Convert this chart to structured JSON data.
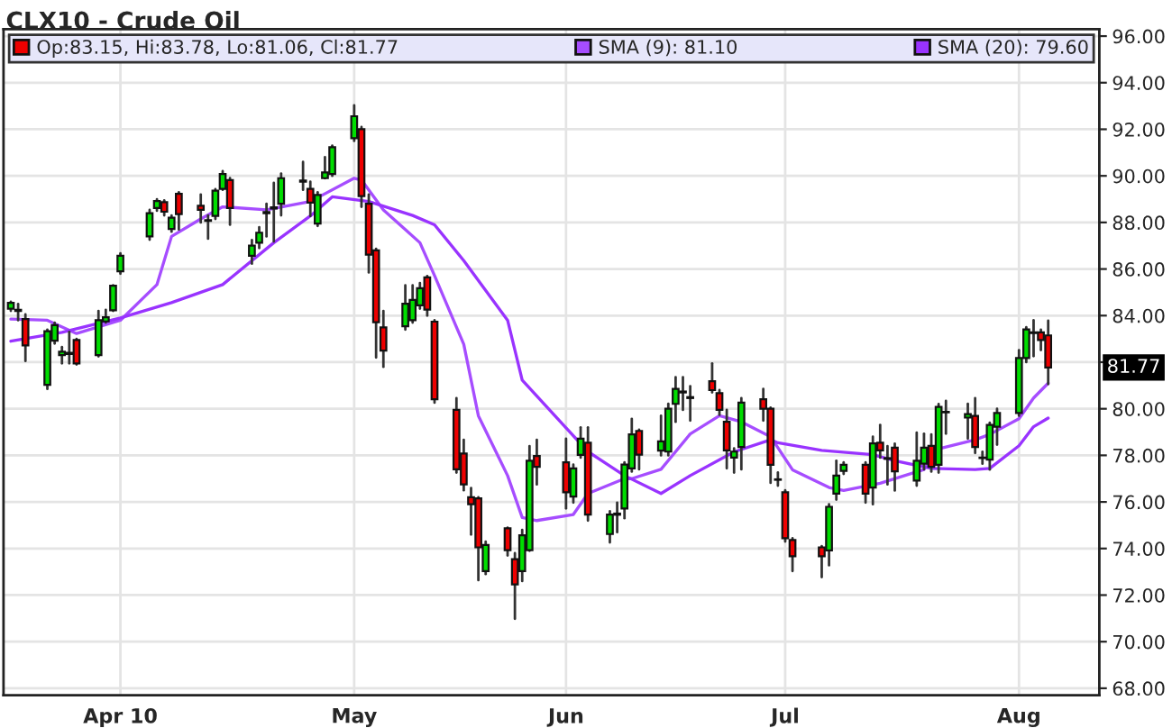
{
  "chart_data": {
    "type": "candlestick",
    "title": "CLX10 - Crude Oil",
    "x": [
      "2010-03-17",
      "2010-03-18",
      "2010-03-19",
      "2010-03-22",
      "2010-03-23",
      "2010-03-24",
      "2010-03-25",
      "2010-03-26",
      "2010-03-29",
      "2010-03-30",
      "2010-03-31",
      "2010-04-01",
      "2010-04-05",
      "2010-04-06",
      "2010-04-07",
      "2010-04-08",
      "2010-04-09",
      "2010-04-12",
      "2010-04-13",
      "2010-04-14",
      "2010-04-15",
      "2010-04-16",
      "2010-04-19",
      "2010-04-20",
      "2010-04-21",
      "2010-04-22",
      "2010-04-23",
      "2010-04-26",
      "2010-04-27",
      "2010-04-28",
      "2010-04-29",
      "2010-04-30",
      "2010-05-03",
      "2010-05-04",
      "2010-05-05",
      "2010-05-06",
      "2010-05-07",
      "2010-05-10",
      "2010-05-11",
      "2010-05-12",
      "2010-05-13",
      "2010-05-14",
      "2010-05-17",
      "2010-05-18",
      "2010-05-19",
      "2010-05-20",
      "2010-05-21",
      "2010-05-24",
      "2010-05-25",
      "2010-05-26",
      "2010-05-27",
      "2010-05-28",
      "2010-06-01",
      "2010-06-02",
      "2010-06-03",
      "2010-06-04",
      "2010-06-07",
      "2010-06-08",
      "2010-06-09",
      "2010-06-10",
      "2010-06-11",
      "2010-06-14",
      "2010-06-15",
      "2010-06-16",
      "2010-06-17",
      "2010-06-18",
      "2010-06-21",
      "2010-06-22",
      "2010-06-23",
      "2010-06-24",
      "2010-06-25",
      "2010-06-28",
      "2010-06-29",
      "2010-06-30",
      "2010-07-01",
      "2010-07-02",
      "2010-07-06",
      "2010-07-07",
      "2010-07-08",
      "2010-07-09",
      "2010-07-12",
      "2010-07-13",
      "2010-07-14",
      "2010-07-15",
      "2010-07-16",
      "2010-07-19",
      "2010-07-20",
      "2010-07-21",
      "2010-07-22",
      "2010-07-23",
      "2010-07-26",
      "2010-07-27",
      "2010-07-28",
      "2010-07-29",
      "2010-07-30",
      "2010-08-02",
      "2010-08-03",
      "2010-08-04",
      "2010-08-05",
      "2010-08-06"
    ],
    "series": [
      {
        "name": "Op:83.15, Hi:83.78, Lo:81.06, Cl:81.77",
        "color": "#ee0000",
        "ohlc": [
          [
            84.3,
            84.6,
            84.2,
            84.55
          ],
          [
            84.2,
            84.5,
            83.8,
            84.25
          ],
          [
            83.85,
            84.05,
            82.05,
            82.72
          ],
          [
            81.03,
            83.4,
            80.85,
            83.33
          ],
          [
            82.92,
            83.7,
            82.8,
            83.59
          ],
          [
            82.3,
            82.65,
            81.95,
            82.45
          ],
          [
            82.35,
            83.3,
            81.95,
            82.4
          ],
          [
            82.95,
            83.0,
            81.9,
            81.95
          ],
          [
            82.3,
            84.2,
            82.25,
            83.8
          ],
          [
            83.75,
            84.25,
            83.7,
            83.93
          ],
          [
            84.23,
            85.3,
            84.2,
            85.28
          ],
          [
            85.9,
            86.67,
            85.8,
            86.57
          ],
          [
            87.4,
            88.54,
            87.26,
            88.4
          ],
          [
            88.62,
            89.0,
            88.5,
            88.92
          ],
          [
            88.87,
            88.95,
            88.3,
            88.46
          ],
          [
            87.72,
            88.3,
            87.6,
            88.2
          ],
          [
            89.23,
            89.3,
            87.7,
            88.36
          ],
          [
            88.72,
            89.2,
            88.0,
            88.54
          ],
          [
            88.07,
            88.3,
            87.3,
            88.1
          ],
          [
            88.28,
            89.43,
            88.15,
            89.36
          ],
          [
            89.44,
            90.2,
            89.4,
            90.08
          ],
          [
            89.82,
            89.9,
            87.9,
            88.62
          ],
          [
            86.57,
            87.25,
            86.23,
            87.0
          ],
          [
            87.13,
            87.8,
            86.9,
            87.56
          ],
          [
            88.4,
            88.8,
            87.4,
            88.45
          ],
          [
            88.6,
            89.7,
            87.18,
            88.65
          ],
          [
            88.8,
            90.1,
            88.3,
            89.9
          ],
          [
            89.75,
            90.6,
            89.4,
            89.8
          ],
          [
            89.44,
            89.75,
            88.28,
            88.85
          ],
          [
            87.95,
            89.3,
            87.85,
            89.18
          ],
          [
            89.9,
            90.8,
            89.9,
            90.15
          ],
          [
            90.08,
            91.3,
            90.0,
            91.23
          ],
          [
            91.62,
            93.03,
            91.5,
            92.56
          ],
          [
            92.0,
            92.1,
            88.67,
            89.13
          ],
          [
            88.8,
            89.2,
            85.85,
            86.62
          ],
          [
            86.8,
            86.87,
            82.2,
            83.72
          ],
          [
            83.49,
            84.2,
            81.8,
            82.5
          ],
          [
            83.54,
            85.3,
            83.4,
            84.51
          ],
          [
            83.8,
            85.3,
            83.7,
            84.67
          ],
          [
            84.44,
            85.4,
            84.3,
            85.18
          ],
          [
            85.64,
            85.7,
            84.0,
            84.26
          ],
          [
            83.74,
            83.8,
            80.26,
            80.41
          ],
          [
            79.95,
            80.46,
            77.26,
            77.4
          ],
          [
            78.08,
            78.67,
            76.5,
            76.75
          ],
          [
            76.2,
            76.6,
            74.6,
            75.9
          ],
          [
            76.15,
            76.2,
            72.64,
            74.05
          ],
          [
            73.03,
            74.3,
            72.9,
            74.15
          ],
          [
            74.87,
            74.9,
            73.7,
            73.93
          ],
          [
            73.54,
            73.8,
            70.98,
            72.46
          ],
          [
            73.03,
            74.8,
            72.6,
            74.57
          ],
          [
            73.93,
            78.4,
            73.9,
            77.77
          ],
          [
            77.97,
            78.67,
            76.75,
            77.51
          ],
          [
            77.7,
            78.72,
            75.72,
            76.41
          ],
          [
            76.23,
            77.6,
            75.97,
            77.44
          ],
          [
            78.02,
            79.2,
            77.9,
            78.72
          ],
          [
            78.54,
            79.2,
            75.2,
            75.46
          ],
          [
            74.62,
            75.6,
            74.26,
            75.46
          ],
          [
            75.45,
            75.97,
            74.7,
            75.5
          ],
          [
            75.72,
            77.7,
            75.3,
            77.6
          ],
          [
            77.44,
            79.57,
            77.3,
            78.9
          ],
          [
            79.05,
            79.1,
            77.4,
            78.03
          ],
          [
            78.2,
            79.7,
            78.0,
            78.6
          ],
          [
            78.16,
            80.21,
            78.0,
            80.0
          ],
          [
            80.21,
            81.36,
            79.44,
            80.85
          ],
          [
            80.7,
            81.36,
            79.95,
            80.74
          ],
          [
            80.5,
            80.97,
            79.49,
            80.46
          ],
          [
            81.18,
            81.95,
            80.7,
            80.8
          ],
          [
            80.67,
            80.8,
            79.74,
            79.95
          ],
          [
            79.44,
            79.95,
            77.44,
            78.21
          ],
          [
            77.9,
            78.3,
            77.26,
            78.16
          ],
          [
            78.36,
            80.46,
            77.4,
            80.26
          ],
          [
            80.41,
            80.85,
            79.49,
            80.0
          ],
          [
            80.0,
            80.05,
            76.82,
            77.59
          ],
          [
            76.97,
            77.26,
            76.7,
            76.95
          ],
          [
            76.41,
            76.5,
            74.3,
            74.44
          ],
          [
            74.36,
            74.44,
            73.03,
            73.67
          ],
          [
            74.05,
            74.1,
            72.77,
            73.67
          ],
          [
            73.92,
            75.9,
            73.28,
            75.79
          ],
          [
            76.36,
            77.77,
            76.1,
            77.13
          ],
          [
            77.33,
            77.7,
            77.2,
            77.59
          ],
          [
            77.59,
            77.7,
            75.97,
            76.36
          ],
          [
            76.62,
            78.8,
            75.9,
            78.51
          ],
          [
            78.54,
            79.31,
            77.9,
            78.21
          ],
          [
            77.85,
            78.4,
            76.75,
            77.88
          ],
          [
            78.33,
            78.5,
            76.49,
            77.31
          ],
          [
            76.92,
            78.98,
            76.7,
            77.77
          ],
          [
            77.64,
            78.93,
            77.4,
            78.33
          ],
          [
            78.41,
            78.9,
            77.3,
            77.51
          ],
          [
            77.59,
            80.2,
            77.26,
            80.08
          ],
          [
            79.85,
            80.34,
            78.93,
            79.87
          ],
          [
            79.62,
            80.21,
            78.72,
            79.77
          ],
          [
            79.69,
            80.46,
            78.1,
            78.36
          ],
          [
            77.88,
            78.15,
            77.64,
            77.9
          ],
          [
            77.82,
            79.4,
            77.39,
            79.31
          ],
          [
            79.23,
            80.0,
            78.46,
            79.82
          ],
          [
            79.82,
            82.52,
            79.7,
            82.18
          ],
          [
            82.18,
            83.5,
            82.0,
            83.41
          ],
          [
            83.25,
            83.8,
            82.26,
            83.28
          ],
          [
            83.28,
            83.4,
            82.52,
            82.95
          ],
          [
            83.15,
            83.78,
            81.06,
            81.77
          ]
        ],
        "colors": [
          "#00dd00",
          "#00dd00",
          "#ee0000",
          "#00dd00",
          "#00dd00",
          "#00dd00",
          "#00dd00",
          "#ee0000",
          "#00dd00",
          "#00dd00",
          "#00dd00",
          "#00dd00",
          "#00dd00",
          "#00dd00",
          "#ee0000",
          "#00dd00",
          "#ee0000",
          "#ee0000",
          "#00dd00",
          "#00dd00",
          "#00dd00",
          "#ee0000",
          "#00dd00",
          "#00dd00",
          "#00dd00",
          "#00dd00",
          "#00dd00",
          "#00dd00",
          "#ee0000",
          "#00dd00",
          "#00dd00",
          "#00dd00",
          "#00dd00",
          "#ee0000",
          "#ee0000",
          "#ee0000",
          "#ee0000",
          "#00dd00",
          "#00dd00",
          "#00dd00",
          "#ee0000",
          "#ee0000",
          "#ee0000",
          "#ee0000",
          "#ee0000",
          "#ee0000",
          "#00dd00",
          "#ee0000",
          "#ee0000",
          "#00dd00",
          "#00dd00",
          "#ee0000",
          "#ee0000",
          "#00dd00",
          "#00dd00",
          "#ee0000",
          "#00dd00",
          "#00dd00",
          "#00dd00",
          "#00dd00",
          "#ee0000",
          "#00dd00",
          "#00dd00",
          "#00dd00",
          "#00dd00",
          "#ee0000",
          "#ee0000",
          "#ee0000",
          "#ee0000",
          "#00dd00",
          "#00dd00",
          "#ee0000",
          "#ee0000",
          "#ee0000",
          "#ee0000",
          "#ee0000",
          "#ee0000",
          "#00dd00",
          "#00dd00",
          "#00dd00",
          "#ee0000",
          "#00dd00",
          "#ee0000",
          "#00dd00",
          "#ee0000",
          "#00dd00",
          "#00dd00",
          "#ee0000",
          "#00dd00",
          "#00dd00",
          "#00dd00",
          "#ee0000",
          "#00dd00",
          "#00dd00",
          "#00dd00",
          "#00dd00",
          "#00dd00",
          "#00dd00",
          "#ee0000",
          "#ee0000"
        ]
      },
      {
        "name": "SMA (9): 81.10",
        "type": "line",
        "color": "#a64dff",
        "x": [
          "2010-03-17",
          "2010-03-22",
          "2010-03-26",
          "2010-04-01",
          "2010-04-06",
          "2010-04-08",
          "2010-04-12",
          "2010-04-15",
          "2010-04-21",
          "2010-04-27",
          "2010-05-03",
          "2010-05-04",
          "2010-05-07",
          "2010-05-12",
          "2010-05-14",
          "2010-05-18",
          "2010-05-20",
          "2010-05-24",
          "2010-05-26",
          "2010-05-28",
          "2010-06-02",
          "2010-06-04",
          "2010-06-09",
          "2010-06-10",
          "2010-06-14",
          "2010-06-18",
          "2010-06-22",
          "2010-06-25",
          "2010-06-29",
          "2010-07-02",
          "2010-07-07",
          "2010-07-09",
          "2010-07-14",
          "2010-07-20",
          "2010-07-22",
          "2010-07-27",
          "2010-07-29",
          "2010-08-02",
          "2010-08-04",
          "2010-08-06"
        ],
        "values": [
          83.85,
          83.8,
          83.23,
          83.8,
          85.33,
          87.4,
          88.15,
          88.67,
          88.54,
          88.9,
          89.9,
          89.82,
          88.54,
          87.13,
          85.72,
          82.77,
          79.7,
          77.13,
          75.33,
          75.2,
          75.46,
          76.36,
          77.0,
          77.0,
          77.4,
          78.92,
          79.7,
          79.44,
          78.8,
          77.38,
          76.62,
          76.49,
          76.8,
          77.39,
          78.28,
          78.67,
          78.9,
          79.57,
          80.46,
          81.1
        ]
      },
      {
        "name": "SMA (20): 79.60",
        "type": "line",
        "color": "#9933ff",
        "x": [
          "2010-03-17",
          "2010-03-24",
          "2010-04-01",
          "2010-04-08",
          "2010-04-15",
          "2010-04-22",
          "2010-04-27",
          "2010-04-30",
          "2010-05-05",
          "2010-05-11",
          "2010-05-14",
          "2010-05-18",
          "2010-05-24",
          "2010-05-26",
          "2010-06-01",
          "2010-06-04",
          "2010-06-09",
          "2010-06-14",
          "2010-06-18",
          "2010-06-24",
          "2010-06-29",
          "2010-06-30",
          "2010-07-06",
          "2010-07-13",
          "2010-07-16",
          "2010-07-21",
          "2010-07-27",
          "2010-07-29",
          "2010-08-02",
          "2010-08-04",
          "2010-08-06"
        ],
        "values": [
          82.9,
          83.28,
          83.9,
          84.56,
          85.33,
          87.13,
          88.28,
          89.1,
          88.9,
          88.3,
          87.9,
          86.36,
          83.8,
          81.23,
          79.18,
          78.16,
          77.13,
          76.36,
          77.13,
          78.15,
          78.67,
          78.54,
          78.21,
          78.03,
          77.77,
          77.44,
          77.39,
          77.44,
          78.41,
          79.23,
          79.6
        ]
      }
    ],
    "xlim": [
      "2010-03-16",
      "2010-08-13"
    ],
    "xticks": [
      {
        "value": "2010-04-01",
        "label": "Apr 10"
      },
      {
        "value": "2010-05-03",
        "label": "May"
      },
      {
        "value": "2010-06-01",
        "label": "Jun"
      },
      {
        "value": "2010-07-01",
        "label": "Jul"
      },
      {
        "value": "2010-08-02",
        "label": "Aug"
      }
    ],
    "ylim": [
      67.7,
      96.3
    ],
    "yticks": [
      {
        "value": 68,
        "label": "68.00"
      },
      {
        "value": 70,
        "label": "70.00"
      },
      {
        "value": 72,
        "label": "72.00"
      },
      {
        "value": 74,
        "label": "74.00"
      },
      {
        "value": 76,
        "label": "76.00"
      },
      {
        "value": 78,
        "label": "78.00"
      },
      {
        "value": 80,
        "label": "80.00"
      },
      {
        "value": 82,
        "label": null
      },
      {
        "value": 84,
        "label": "84.00"
      },
      {
        "value": 86,
        "label": "86.00"
      },
      {
        "value": 88,
        "label": "88.00"
      },
      {
        "value": 90,
        "label": "90.00"
      },
      {
        "value": 92,
        "label": "92.00"
      },
      {
        "value": 94,
        "label": "94.00"
      },
      {
        "value": 96,
        "label": "96.00"
      }
    ],
    "annotations": [
      "81.77"
    ],
    "grid": true,
    "legend": "top"
  }
}
